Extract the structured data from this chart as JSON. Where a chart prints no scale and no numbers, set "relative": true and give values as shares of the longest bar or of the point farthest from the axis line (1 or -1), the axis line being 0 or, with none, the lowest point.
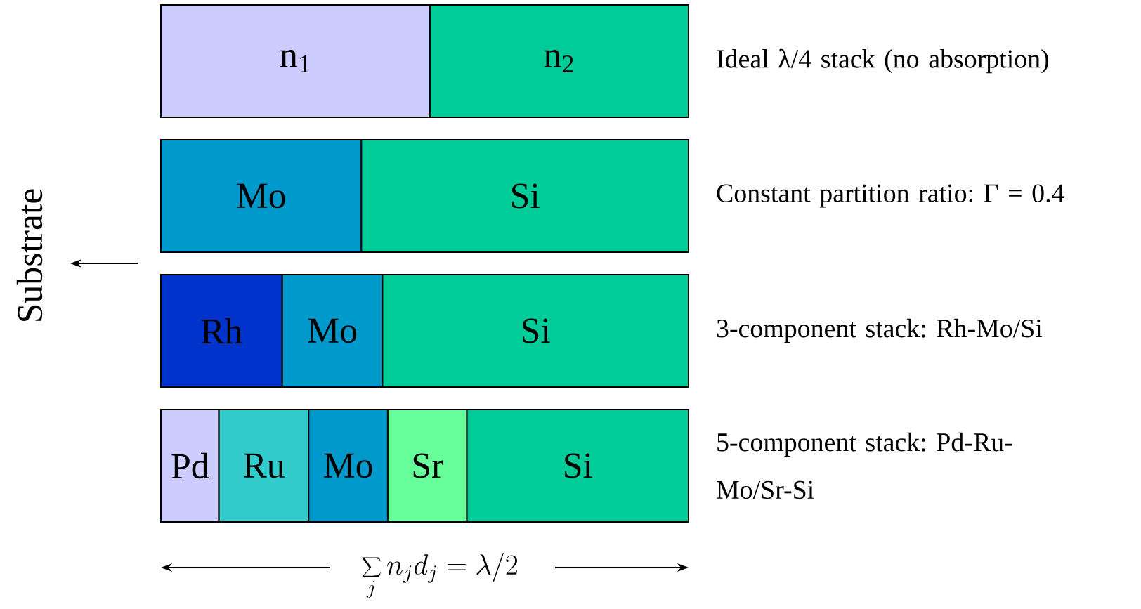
{
  "chart_data": {
    "type": "bar",
    "orientation": "horizontal",
    "stacked": true,
    "relative": true,
    "categories": [
      "Ideal λ/4 stack (no absorption)",
      "Constant partition ratio: Γ = 0.4",
      "3-component stack: Rh-Mo/Si",
      "5-component stack: Pd-Ru-Mo/Sr-Si"
    ],
    "xlabel": "\\sum_{j} n_{j} d_{j} = \\lambda / 2",
    "annotations": [
      "Substrate"
    ],
    "series": [
      {
        "name": "n$_{1}$",
        "color": "#ccccff",
        "values": [
          0.51,
          null,
          null,
          null
        ]
      },
      {
        "name": "n$_{2}$",
        "color": "#00cc99",
        "values": [
          0.49,
          null,
          null,
          null
        ]
      },
      {
        "name": "Pd",
        "color": "#ccccff",
        "values": [
          null,
          null,
          null,
          0.11
        ]
      },
      {
        "name": "Rh",
        "color": "#0033cc",
        "values": [
          null,
          null,
          0.23,
          null
        ]
      },
      {
        "name": "Ru",
        "color": "#33cccc",
        "values": [
          null,
          null,
          null,
          0.17
        ]
      },
      {
        "name": "Mo",
        "color": "#0099cc",
        "values": [
          null,
          0.38,
          0.19,
          0.15
        ]
      },
      {
        "name": "Sr",
        "color": "#66ff99",
        "values": [
          null,
          null,
          null,
          0.15
        ]
      },
      {
        "name": "Si",
        "color": "#00cc99",
        "values": [
          null,
          0.62,
          0.58,
          0.42
        ]
      }
    ]
  }
}
